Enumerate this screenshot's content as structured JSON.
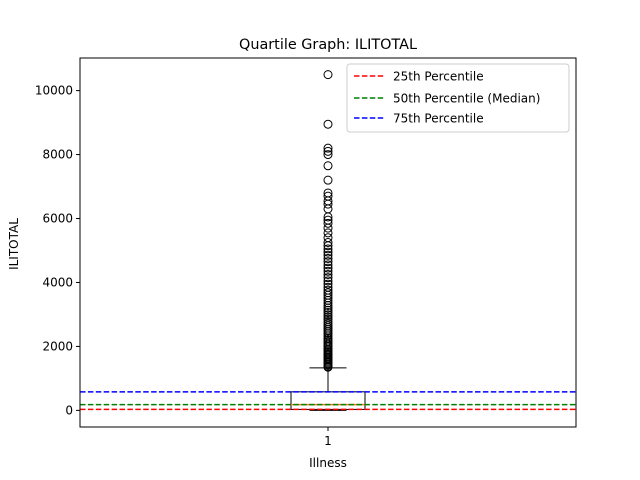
{
  "chart_data": {
    "type": "box",
    "title": "Quartile Graph: ILITOTAL",
    "xlabel": "Illness",
    "ylabel": "ILITOTAL",
    "categories": [
      "1"
    ],
    "ylim": [
      -520,
      11020
    ],
    "yticks": [
      0,
      2000,
      4000,
      6000,
      8000,
      10000
    ],
    "box": {
      "q1": 30,
      "median": 180,
      "q3": 580,
      "whisker_low": 0,
      "whisker_high": 1330,
      "outliers": [
        1350,
        1380,
        1420,
        1460,
        1500,
        1540,
        1580,
        1620,
        1660,
        1700,
        1740,
        1780,
        1820,
        1860,
        1900,
        1950,
        2000,
        2050,
        2100,
        2150,
        2200,
        2250,
        2300,
        2360,
        2420,
        2480,
        2540,
        2600,
        2660,
        2720,
        2780,
        2850,
        2920,
        2990,
        3060,
        3130,
        3200,
        3280,
        3360,
        3440,
        3520,
        3600,
        3680,
        3760,
        3850,
        3950,
        4050,
        4150,
        4250,
        4350,
        4450,
        4550,
        4650,
        4750,
        4850,
        4950,
        5050,
        5150,
        5250,
        5400,
        5550,
        5700,
        5850,
        5950,
        6050,
        6300,
        6450,
        6550,
        6700,
        6800,
        7200,
        7650,
        8000,
        8100,
        8200,
        8950,
        10500
      ]
    },
    "hlines": [
      {
        "name": "25th Percentile",
        "value": 30,
        "color": "#ff0000"
      },
      {
        "name": "50th Percentile (Median)",
        "value": 180,
        "color": "#008000"
      },
      {
        "name": "75th Percentile",
        "value": 580,
        "color": "#0000ff"
      }
    ],
    "legend_position": "top-right",
    "grid": false
  }
}
